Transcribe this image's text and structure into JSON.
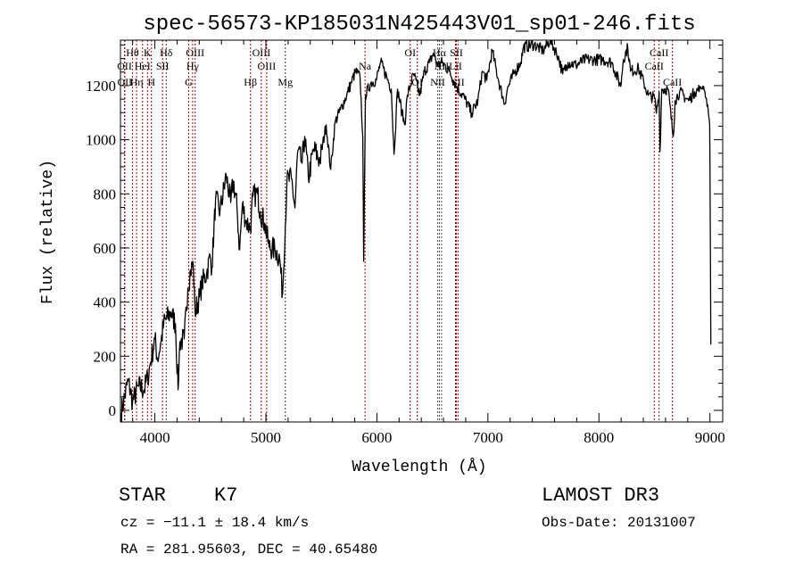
{
  "chart_data": {
    "type": "line",
    "title": "spec-56573-KP185031N425443V01_sp01-246.fits",
    "xlabel": "Wavelength (Å)",
    "ylabel": "Flux (relative)",
    "xlim": [
      3690,
      9115
    ],
    "ylim": [
      -43,
      1368
    ],
    "xticks": [
      4000,
      5000,
      6000,
      7000,
      8000,
      9000
    ],
    "yticks": [
      0,
      200,
      400,
      600,
      800,
      1000,
      1200
    ],
    "grid": false,
    "series": [
      {
        "name": "spectrum",
        "points": [
          [
            3695,
            -10
          ],
          [
            3719,
            33
          ],
          [
            3759,
            109
          ],
          [
            3799,
            33
          ],
          [
            3855,
            89
          ],
          [
            3904,
            76
          ],
          [
            3936,
            122
          ],
          [
            3960,
            175
          ],
          [
            4000,
            264
          ],
          [
            4024,
            188
          ],
          [
            4056,
            254
          ],
          [
            4080,
            320
          ],
          [
            4145,
            363
          ],
          [
            4185,
            320
          ],
          [
            4209,
            76
          ],
          [
            4225,
            254
          ],
          [
            4265,
            264
          ],
          [
            4297,
            452
          ],
          [
            4322,
            518
          ],
          [
            4346,
            538
          ],
          [
            4362,
            363
          ],
          [
            4402,
            419
          ],
          [
            4426,
            472
          ],
          [
            4466,
            505
          ],
          [
            4498,
            570
          ],
          [
            4514,
            528
          ],
          [
            4547,
            781
          ],
          [
            4587,
            735
          ],
          [
            4643,
            867
          ],
          [
            4683,
            768
          ],
          [
            4707,
            847
          ],
          [
            4740,
            748
          ],
          [
            4764,
            593
          ],
          [
            4788,
            758
          ],
          [
            4820,
            702
          ],
          [
            4860,
            669
          ],
          [
            4884,
            791
          ],
          [
            4924,
            801
          ],
          [
            4949,
            735
          ],
          [
            4989,
            692
          ],
          [
            5029,
            603
          ],
          [
            5085,
            593
          ],
          [
            5125,
            560
          ],
          [
            5150,
            429
          ],
          [
            5190,
            847
          ],
          [
            5230,
            857
          ],
          [
            5262,
            748
          ],
          [
            5286,
            956
          ],
          [
            5326,
            913
          ],
          [
            5350,
            1012
          ],
          [
            5383,
            857
          ],
          [
            5431,
            966
          ],
          [
            5487,
            923
          ],
          [
            5543,
            1055
          ],
          [
            5584,
            890
          ],
          [
            5624,
            1065
          ],
          [
            5672,
            1111
          ],
          [
            5728,
            1164
          ],
          [
            5768,
            1210
          ],
          [
            5809,
            1253
          ],
          [
            5849,
            1230
          ],
          [
            5873,
            1012
          ],
          [
            5881,
            551
          ],
          [
            5897,
            1164
          ],
          [
            5945,
            1210
          ],
          [
            5994,
            1220
          ],
          [
            6034,
            1286
          ],
          [
            6090,
            1230
          ],
          [
            6130,
            1187
          ],
          [
            6154,
            946
          ],
          [
            6186,
            1187
          ],
          [
            6227,
            1098
          ],
          [
            6251,
            1055
          ],
          [
            6275,
            1164
          ],
          [
            6331,
            1243
          ],
          [
            6387,
            1164
          ],
          [
            6428,
            1253
          ],
          [
            6476,
            1286
          ],
          [
            6508,
            1319
          ],
          [
            6548,
            1276
          ],
          [
            6588,
            1286
          ],
          [
            6653,
            1253
          ],
          [
            6717,
            1197
          ],
          [
            6789,
            1154
          ],
          [
            6854,
            1098
          ],
          [
            6910,
            1144
          ],
          [
            6950,
            1253
          ],
          [
            6990,
            1220
          ],
          [
            7039,
            1329
          ],
          [
            7095,
            1220
          ],
          [
            7151,
            1131
          ],
          [
            7175,
            1187
          ],
          [
            7232,
            1243
          ],
          [
            7296,
            1286
          ],
          [
            7320,
            1342
          ],
          [
            7416,
            1352
          ],
          [
            7497,
            1329
          ],
          [
            7561,
            1368
          ],
          [
            7633,
            1309
          ],
          [
            7674,
            1243
          ],
          [
            7722,
            1286
          ],
          [
            7794,
            1276
          ],
          [
            7875,
            1296
          ],
          [
            7955,
            1296
          ],
          [
            8035,
            1296
          ],
          [
            8116,
            1286
          ],
          [
            8196,
            1197
          ],
          [
            8220,
            1296
          ],
          [
            8260,
            1342
          ],
          [
            8285,
            1253
          ],
          [
            8357,
            1263
          ],
          [
            8405,
            1210
          ],
          [
            8445,
            1164
          ],
          [
            8502,
            1154
          ],
          [
            8518,
            1098
          ],
          [
            8542,
            1177
          ],
          [
            8550,
            956
          ],
          [
            8566,
            1187
          ],
          [
            8622,
            1187
          ],
          [
            8670,
            1012
          ],
          [
            8686,
            1144
          ],
          [
            8727,
            1177
          ],
          [
            8807,
            1144
          ],
          [
            8863,
            1177
          ],
          [
            8944,
            1197
          ],
          [
            8984,
            1111
          ],
          [
            8998,
            1055
          ],
          [
            9000,
            923
          ],
          [
            9004,
            600
          ],
          [
            9008,
            243
          ]
        ]
      }
    ],
    "lines": [
      {
        "label": "OII",
        "wave": 3727,
        "row": 2,
        "color": "#c00000"
      },
      {
        "label": "Hθ",
        "wave": 3798,
        "row": 1,
        "color": "#c00000"
      },
      {
        "label": "OII",
        "wave": 3729,
        "row": 3,
        "color": "#c00000"
      },
      {
        "label": "Hη",
        "wave": 3835,
        "row": 3,
        "color": "#c00000"
      },
      {
        "label": "HeI",
        "wave": 3889,
        "row": 2,
        "color": "#c00000"
      },
      {
        "label": "K",
        "wave": 3934,
        "row": 1,
        "color": "#c00000"
      },
      {
        "label": "H",
        "wave": 3969,
        "row": 3,
        "color": "#c00000"
      },
      {
        "label": "SII",
        "wave": 4069,
        "row": 2,
        "color": "#c00000"
      },
      {
        "label": "Hδ",
        "wave": 4102,
        "row": 1,
        "color": "#333333"
      },
      {
        "label": "G",
        "wave": 4305,
        "row": 3,
        "color": "#c00000"
      },
      {
        "label": "Hγ",
        "wave": 4340,
        "row": 2,
        "color": "#c00000"
      },
      {
        "label": "OIII",
        "wave": 4363,
        "row": 1,
        "color": "#c00000"
      },
      {
        "label": "Hβ",
        "wave": 4861,
        "row": 3,
        "color": "#c00000"
      },
      {
        "label": "OIII",
        "wave": 4959,
        "row": 1,
        "color": "#c00000"
      },
      {
        "label": "OIII",
        "wave": 5007,
        "row": 2,
        "color": "#c00000"
      },
      {
        "label": "Mg",
        "wave": 5175,
        "row": 3,
        "color": "#333333"
      },
      {
        "label": "Na",
        "wave": 5893,
        "row": 2,
        "color": "#c00000"
      },
      {
        "label": "OI",
        "wave": 6300,
        "row": 1,
        "color": "#c00000"
      },
      {
        "label": "OI",
        "wave": 6364,
        "row": 3,
        "color": "#c00000"
      },
      {
        "label": "NII",
        "wave": 6548,
        "row": 3,
        "color": "#555555"
      },
      {
        "label": "Hα",
        "wave": 6563,
        "row": 1,
        "color": "#555555"
      },
      {
        "label": "NII",
        "wave": 6583,
        "row": 2,
        "color": "#555555"
      },
      {
        "label": "LiI",
        "wave": 6708,
        "row": 2,
        "color": "#c00000"
      },
      {
        "label": "SII",
        "wave": 6716,
        "row": 1,
        "color": "#c00000"
      },
      {
        "label": "SII",
        "wave": 6731,
        "row": 3,
        "color": "#c00000"
      },
      {
        "label": "CaII",
        "wave": 8498,
        "row": 2,
        "color": "#c00000"
      },
      {
        "label": "CaII",
        "wave": 8542,
        "row": 1,
        "color": "#c00000"
      },
      {
        "label": "CaII",
        "wave": 8662,
        "row": 3,
        "color": "#c00000"
      }
    ]
  },
  "info": {
    "object_class": "STAR",
    "subclass": "K7",
    "survey": "LAMOST DR3",
    "cz": "cz = −11.1 ± 18.4 km/s",
    "obs_date": "Obs-Date: 20131007",
    "coords": "RA = 281.95603, DEC =  40.65480"
  }
}
